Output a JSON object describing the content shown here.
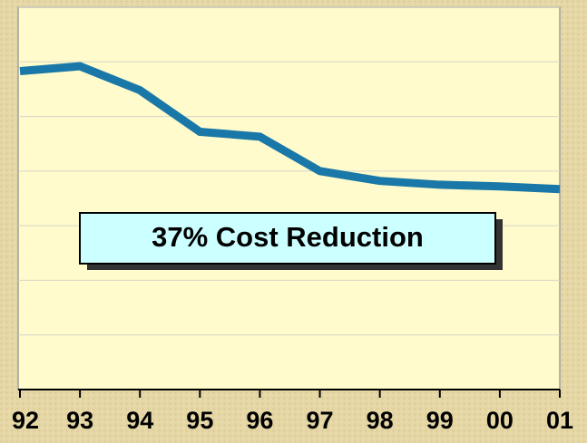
{
  "chart_data": {
    "type": "line",
    "categories": [
      "92",
      "93",
      "94",
      "95",
      "96",
      "97",
      "98",
      "99",
      "00",
      "01"
    ],
    "values": [
      5.83,
      5.92,
      5.48,
      4.72,
      4.63,
      4.0,
      3.82,
      3.75,
      3.72,
      3.67
    ],
    "color": "#1a78a8",
    "ylim": [
      0,
      7
    ],
    "yticks": [
      0,
      1,
      2,
      3,
      4,
      5,
      6,
      7
    ],
    "grid": true,
    "annotation": "37% Cost Reduction"
  }
}
